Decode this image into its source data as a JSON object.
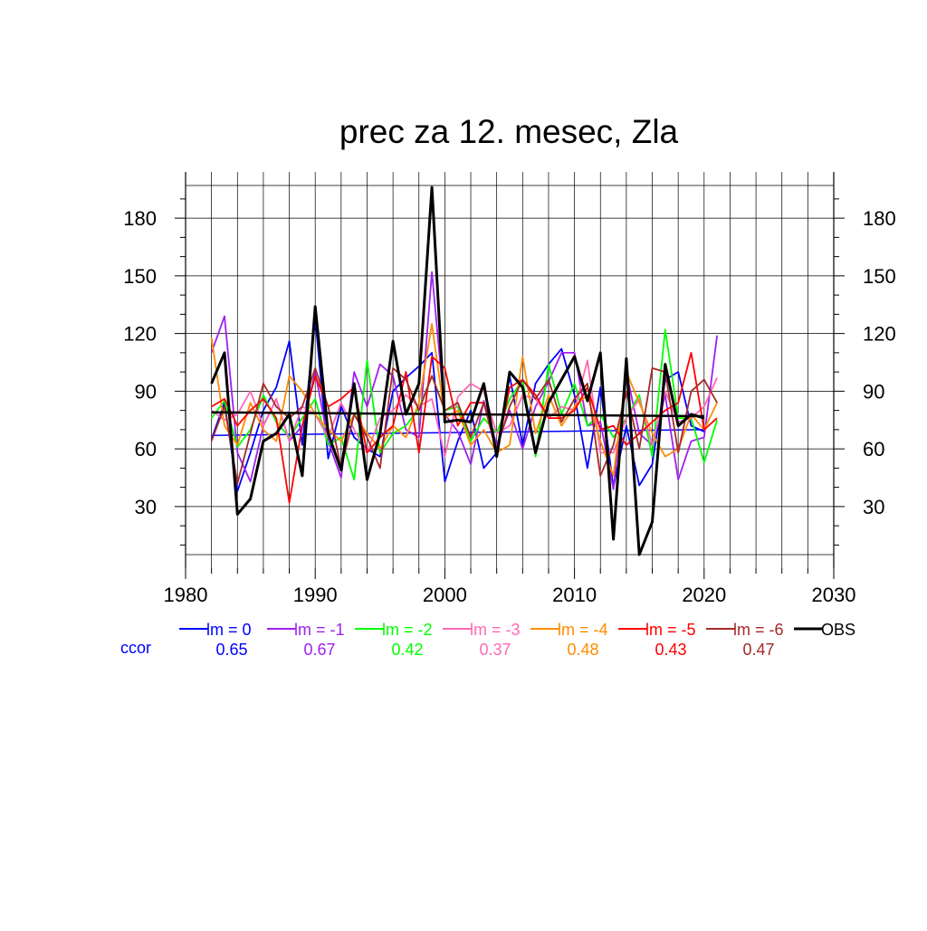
{
  "chart_data": {
    "type": "line",
    "title": "prec za 12. mesec, Zla",
    "xlabel": "",
    "ylabel": "",
    "xlim": [
      1980,
      2030
    ],
    "ylim": [
      5,
      197
    ],
    "x_ticks": [
      1980,
      1990,
      2000,
      2010,
      2020,
      2030
    ],
    "y_ticks": [
      30,
      60,
      90,
      120,
      150,
      180
    ],
    "grid": true,
    "legend_position": "bottom",
    "ccor_label": "ccor",
    "series": [
      {
        "name": "lm = 0",
        "color": "#0000ff",
        "ccor": "0.65",
        "x": [
          1982,
          1983,
          1984,
          1985,
          1986,
          1987,
          1988,
          1989,
          1990,
          1991,
          1992,
          1993,
          1994,
          1995,
          1996,
          1997,
          1998,
          1999,
          2000,
          2001,
          2002,
          2003,
          2004,
          2005,
          2006,
          2007,
          2008,
          2009,
          2010,
          2011,
          2012,
          2013,
          2014,
          2015,
          2016,
          2017,
          2018,
          2019,
          2020
        ],
        "y": [
          65,
          84,
          38,
          58,
          80,
          92,
          116,
          62,
          128,
          55,
          82,
          66,
          60,
          56,
          90,
          97,
          103,
          110,
          43,
          64,
          80,
          50,
          58,
          98,
          62,
          94,
          104,
          112,
          88,
          50,
          92,
          40,
          72,
          41,
          52,
          96,
          100,
          72,
          69
        ],
        "trend": [
          67,
          70
        ]
      },
      {
        "name": "lm = -1",
        "color": "#a020f0",
        "ccor": "0.67",
        "x": [
          1982,
          1983,
          1984,
          1985,
          1986,
          1987,
          1988,
          1989,
          1990,
          1991,
          1992,
          1993,
          1994,
          1995,
          1996,
          1997,
          1998,
          1999,
          2000,
          2001,
          2002,
          2003,
          2004,
          2005,
          2006,
          2007,
          2008,
          2009,
          2010,
          2011,
          2012,
          2013,
          2014,
          2015,
          2016,
          2017,
          2018,
          2019,
          2020,
          2021
        ],
        "y": [
          110,
          129,
          58,
          43,
          72,
          86,
          64,
          72,
          100,
          64,
          45,
          100,
          82,
          104,
          98,
          70,
          66,
          152,
          78,
          69,
          52,
          85,
          62,
          80,
          60,
          82,
          95,
          110,
          110,
          72,
          74,
          39,
          100,
          68,
          62,
          88,
          44,
          64,
          66,
          119
        ]
      },
      {
        "name": "lm = -2",
        "color": "#00ff00",
        "ccor": "0.42",
        "x": [
          1982,
          1983,
          1984,
          1985,
          1986,
          1987,
          1988,
          1989,
          1990,
          1991,
          1992,
          1993,
          1994,
          1995,
          1996,
          1997,
          1998,
          1999,
          2000,
          2001,
          2002,
          2003,
          2004,
          2005,
          2006,
          2007,
          2008,
          2009,
          2010,
          2011,
          2012,
          2013,
          2014,
          2015,
          2016,
          2017,
          2018,
          2019,
          2020,
          2021
        ],
        "y": [
          76,
          85,
          61,
          70,
          88,
          74,
          66,
          76,
          86,
          62,
          66,
          44,
          106,
          58,
          68,
          72,
          81,
          98,
          80,
          82,
          64,
          76,
          68,
          86,
          96,
          56,
          104,
          78,
          94,
          72,
          78,
          66,
          76,
          88,
          56,
          122,
          76,
          76,
          53,
          75
        ]
      },
      {
        "name": "lm = -3",
        "color": "#ff69b4",
        "ccor": "0.37",
        "x": [
          1982,
          1983,
          1984,
          1985,
          1986,
          1987,
          1988,
          1989,
          1990,
          1991,
          1992,
          1993,
          1994,
          1995,
          1996,
          1997,
          1998,
          1999,
          2000,
          2001,
          2002,
          2003,
          2004,
          2005,
          2006,
          2007,
          2008,
          2009,
          2010,
          2011,
          2012,
          2013,
          2014,
          2015,
          2016,
          2017,
          2018,
          2019,
          2020,
          2021
        ],
        "y": [
          80,
          75,
          78,
          90,
          72,
          86,
          64,
          82,
          78,
          66,
          84,
          70,
          58,
          76,
          80,
          88,
          82,
          86,
          56,
          87,
          94,
          90,
          68,
          72,
          88,
          86,
          76,
          82,
          80,
          106,
          58,
          58,
          76,
          86,
          62,
          90,
          74,
          76,
          82,
          97
        ]
      },
      {
        "name": "lm = -4",
        "color": "#ff8c00",
        "ccor": "0.48",
        "x": [
          1982,
          1983,
          1984,
          1985,
          1986,
          1987,
          1988,
          1989,
          1990,
          1991,
          1992,
          1993,
          1994,
          1995,
          1996,
          1997,
          1998,
          1999,
          2000,
          2001,
          2002,
          2003,
          2004,
          2005,
          2006,
          2007,
          2008,
          2009,
          2010,
          2011,
          2012,
          2013,
          2014,
          2015,
          2016,
          2017,
          2018,
          2019,
          2020,
          2021
        ],
        "y": [
          118,
          72,
          62,
          84,
          70,
          64,
          98,
          90,
          78,
          70,
          64,
          78,
          68,
          60,
          72,
          66,
          84,
          125,
          76,
          80,
          62,
          70,
          58,
          62,
          108,
          68,
          88,
          72,
          82,
          88,
          64,
          46,
          100,
          84,
          68,
          56,
          60,
          78,
          70,
          84
        ]
      },
      {
        "name": "lm = -5",
        "color": "#ff0000",
        "ccor": "0.43",
        "x": [
          1982,
          1983,
          1984,
          1985,
          1986,
          1987,
          1988,
          1989,
          1990,
          1991,
          1992,
          1993,
          1994,
          1995,
          1996,
          1997,
          1998,
          1999,
          2000,
          2001,
          2002,
          2003,
          2004,
          2005,
          2006,
          2007,
          2008,
          2009,
          2010,
          2011,
          2012,
          2013,
          2014,
          2015,
          2016,
          2017,
          2018,
          2019,
          2020,
          2021
        ],
        "y": [
          82,
          86,
          72,
          80,
          86,
          76,
          32,
          72,
          98,
          82,
          86,
          92,
          58,
          66,
          72,
          100,
          58,
          108,
          102,
          72,
          84,
          84,
          58,
          92,
          96,
          88,
          76,
          76,
          80,
          92,
          70,
          72,
          62,
          68,
          74,
          80,
          84,
          110,
          70,
          76
        ]
      },
      {
        "name": "lm = -6",
        "color": "#a52a2a",
        "ccor": "0.47",
        "x": [
          1982,
          1983,
          1984,
          1985,
          1986,
          1987,
          1988,
          1989,
          1990,
          1991,
          1992,
          1993,
          1994,
          1995,
          1996,
          1997,
          1998,
          1999,
          2000,
          2001,
          2002,
          2003,
          2004,
          2005,
          2006,
          2007,
          2008,
          2009,
          2010,
          2011,
          2012,
          2013,
          2014,
          2015,
          2016,
          2017,
          2018,
          2019,
          2020,
          2021
        ],
        "y": [
          64,
          82,
          42,
          68,
          94,
          82,
          76,
          82,
          102,
          82,
          50,
          78,
          66,
          50,
          102,
          96,
          80,
          98,
          80,
          84,
          66,
          84,
          60,
          82,
          96,
          86,
          96,
          74,
          86,
          94,
          46,
          62,
          90,
          60,
          102,
          100,
          58,
          90,
          96,
          84
        ]
      },
      {
        "name": "OBS",
        "color": "#000000",
        "ccor": "",
        "x": [
          1982,
          1983,
          1984,
          1985,
          1986,
          1987,
          1988,
          1989,
          1990,
          1991,
          1992,
          1993,
          1994,
          1995,
          1996,
          1997,
          1998,
          1999,
          2000,
          2001,
          2002,
          2003,
          2004,
          2005,
          2006,
          2007,
          2008,
          2009,
          2010,
          2011,
          2012,
          2013,
          2014,
          2015,
          2016,
          2017,
          2018,
          2019,
          2020
        ],
        "y": [
          94,
          110,
          26,
          34,
          64,
          68,
          78,
          46,
          134,
          68,
          49,
          94,
          44,
          68,
          116,
          78,
          94,
          196,
          74,
          75,
          74,
          94,
          56,
          100,
          92,
          58,
          84,
          96,
          108,
          85,
          110,
          13,
          107,
          5,
          22,
          104,
          72,
          78,
          76
        ],
        "trend": [
          79,
          77
        ]
      }
    ]
  }
}
